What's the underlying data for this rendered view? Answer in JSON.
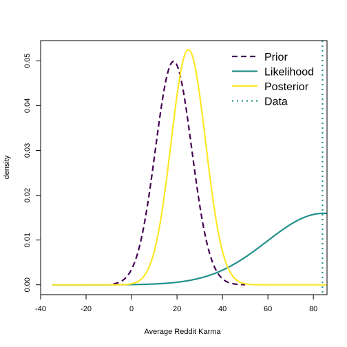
{
  "chart_data": {
    "type": "line",
    "title": "",
    "xlabel": "Average Reddit Karma",
    "ylabel": "density",
    "xlim": [
      -40,
      86
    ],
    "ylim": [
      -0.0022,
      0.0545
    ],
    "x_ticks": [
      -40,
      -20,
      0,
      20,
      40,
      60,
      80
    ],
    "x_tick_labels": [
      "-40",
      "-20",
      "0",
      "20",
      "40",
      "60",
      "80"
    ],
    "y_ticks": [
      0.0,
      0.01,
      0.02,
      0.03,
      0.04,
      0.05
    ],
    "y_tick_labels": [
      "0.00",
      "0.01",
      "0.02",
      "0.03",
      "0.04",
      "0.05"
    ],
    "grid": false,
    "legend_position": "top-right",
    "series": [
      {
        "name": "Prior",
        "color": "#440154",
        "line_style": "dashed",
        "distribution": "normal",
        "mean": 18.5,
        "sd": 8.0,
        "x_range": [
          -8,
          50
        ]
      },
      {
        "name": "Likelihood",
        "color": "#21908C",
        "line_style": "solid",
        "distribution": "normal",
        "mean": 84.5,
        "sd": 25.0,
        "x_range": [
          -35,
          86
        ]
      },
      {
        "name": "Posterior",
        "color": "#FDE725",
        "line_style": "solid",
        "distribution": "normal",
        "mean": 25.0,
        "sd": 7.6,
        "x_range": [
          -35,
          86
        ]
      },
      {
        "name": "Data",
        "color": "#21908C",
        "line_style": "dotted",
        "type": "vline",
        "x": 84
      }
    ]
  }
}
